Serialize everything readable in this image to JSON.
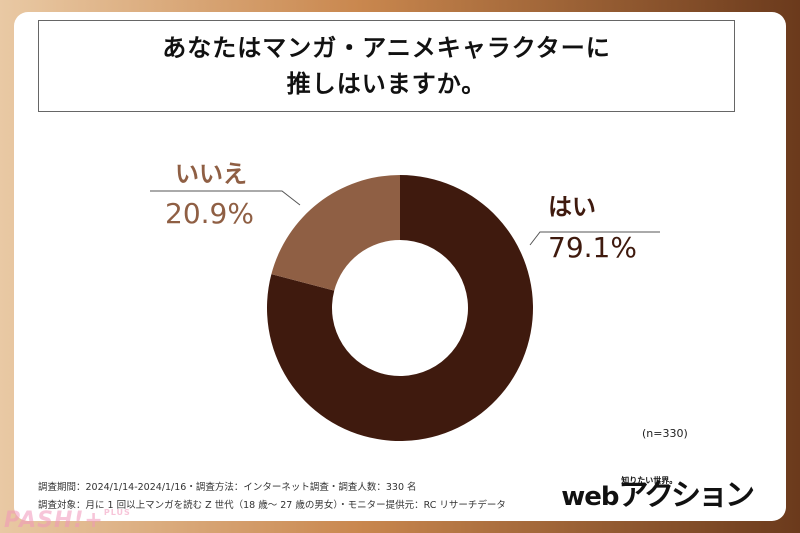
{
  "title": {
    "line1": "あなたはマンガ・アニメキャラクターに",
    "line2": "推しはいますか。"
  },
  "chart_data": {
    "type": "pie",
    "donut": true,
    "slices": [
      {
        "label": "はい",
        "value": 79.1,
        "value_label": "79.1%",
        "color": "#3f1a0e"
      },
      {
        "label": "いいえ",
        "value": 20.9,
        "value_label": "20.9%",
        "color": "#8f5f44"
      }
    ],
    "n_note": "(n=330)"
  },
  "footer": {
    "line1": "調査期間：2024/1/14-2024/1/16・調査方法：インターネット調査・調査人数：330 名",
    "line2": "調査対象：月に 1 回以上マンガを読む Z 世代（18 歳〜 27 歳の男女）・モニター提供元：RC リサーチデータ"
  },
  "logo": {
    "tagline": "知りたい世界。",
    "web": "web",
    "brand": "アクション"
  },
  "watermark": {
    "text": "PASH!+",
    "plus": "PLUS"
  }
}
